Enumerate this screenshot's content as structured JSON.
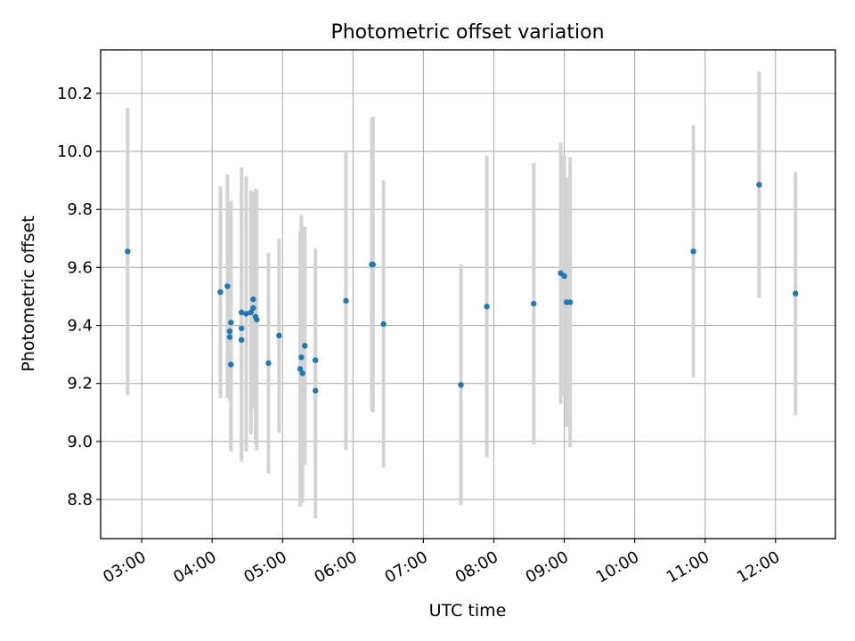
{
  "chart_data": {
    "type": "scatter",
    "title": "Photometric offset variation",
    "xlabel": "UTC time",
    "ylabel": "Photometric offset",
    "x_tick_labels": [
      "03:00",
      "04:00",
      "05:00",
      "06:00",
      "07:00",
      "08:00",
      "09:00",
      "10:00",
      "11:00",
      "12:00"
    ],
    "y_tick_labels": [
      "8.8",
      "9.0",
      "9.2",
      "9.4",
      "9.6",
      "9.8",
      "10.0",
      "10.2"
    ],
    "xlim": [
      "02:25",
      "12:51"
    ],
    "ylim": [
      8.665,
      10.35
    ],
    "grid": true,
    "legend": "none",
    "colors": {
      "point": "#1f77b4",
      "error_bar": "#d3d3d3",
      "grid": "#b0b0b0"
    },
    "points": [
      {
        "x": "02:48",
        "y": 9.655,
        "err": 0.495
      },
      {
        "x": "04:07",
        "y": 9.515,
        "err": 0.365
      },
      {
        "x": "04:13",
        "y": 9.535,
        "err": 0.385
      },
      {
        "x": "04:15",
        "y": 9.38,
        "err": 0.24
      },
      {
        "x": "04:15",
        "y": 9.36,
        "err": 0.22
      },
      {
        "x": "04:16",
        "y": 9.265,
        "err": 0.3
      },
      {
        "x": "04:16",
        "y": 9.41,
        "err": 0.42
      },
      {
        "x": "04:25",
        "y": 9.39,
        "err": 0.46
      },
      {
        "x": "04:25",
        "y": 9.35,
        "err": 0.4
      },
      {
        "x": "04:25",
        "y": 9.445,
        "err": 0.5
      },
      {
        "x": "04:29",
        "y": 9.44,
        "err": 0.475
      },
      {
        "x": "04:33",
        "y": 9.445,
        "err": 0.42
      },
      {
        "x": "04:35",
        "y": 9.49,
        "err": 0.37
      },
      {
        "x": "04:35",
        "y": 9.46,
        "err": 0.345
      },
      {
        "x": "04:37",
        "y": 9.43,
        "err": 0.44
      },
      {
        "x": "04:38",
        "y": 9.42,
        "err": 0.45
      },
      {
        "x": "04:48",
        "y": 9.27,
        "err": 0.38
      },
      {
        "x": "04:57",
        "y": 9.365,
        "err": 0.335
      },
      {
        "x": "05:15",
        "y": 9.25,
        "err": 0.475
      },
      {
        "x": "05:16",
        "y": 9.29,
        "err": 0.49
      },
      {
        "x": "05:17",
        "y": 9.235,
        "err": 0.445
      },
      {
        "x": "05:19",
        "y": 9.33,
        "err": 0.41
      },
      {
        "x": "05:28",
        "y": 9.28,
        "err": 0.385
      },
      {
        "x": "05:28",
        "y": 9.175,
        "err": 0.44
      },
      {
        "x": "05:54",
        "y": 9.485,
        "err": 0.515
      },
      {
        "x": "06:16",
        "y": 9.61,
        "err": 0.505
      },
      {
        "x": "06:17",
        "y": 9.61,
        "err": 0.51
      },
      {
        "x": "06:26",
        "y": 9.405,
        "err": 0.495
      },
      {
        "x": "07:32",
        "y": 9.195,
        "err": 0.415
      },
      {
        "x": "07:54",
        "y": 9.465,
        "err": 0.52
      },
      {
        "x": "08:34",
        "y": 9.475,
        "err": 0.485
      },
      {
        "x": "08:57",
        "y": 9.58,
        "err": 0.45
      },
      {
        "x": "09:00",
        "y": 9.57,
        "err": 0.415
      },
      {
        "x": "09:02",
        "y": 9.48,
        "err": 0.43
      },
      {
        "x": "09:05",
        "y": 9.48,
        "err": 0.5
      },
      {
        "x": "10:50",
        "y": 9.655,
        "err": 0.435
      },
      {
        "x": "11:46",
        "y": 9.885,
        "err": 0.39
      },
      {
        "x": "12:17",
        "y": 9.51,
        "err": 0.42
      }
    ]
  }
}
